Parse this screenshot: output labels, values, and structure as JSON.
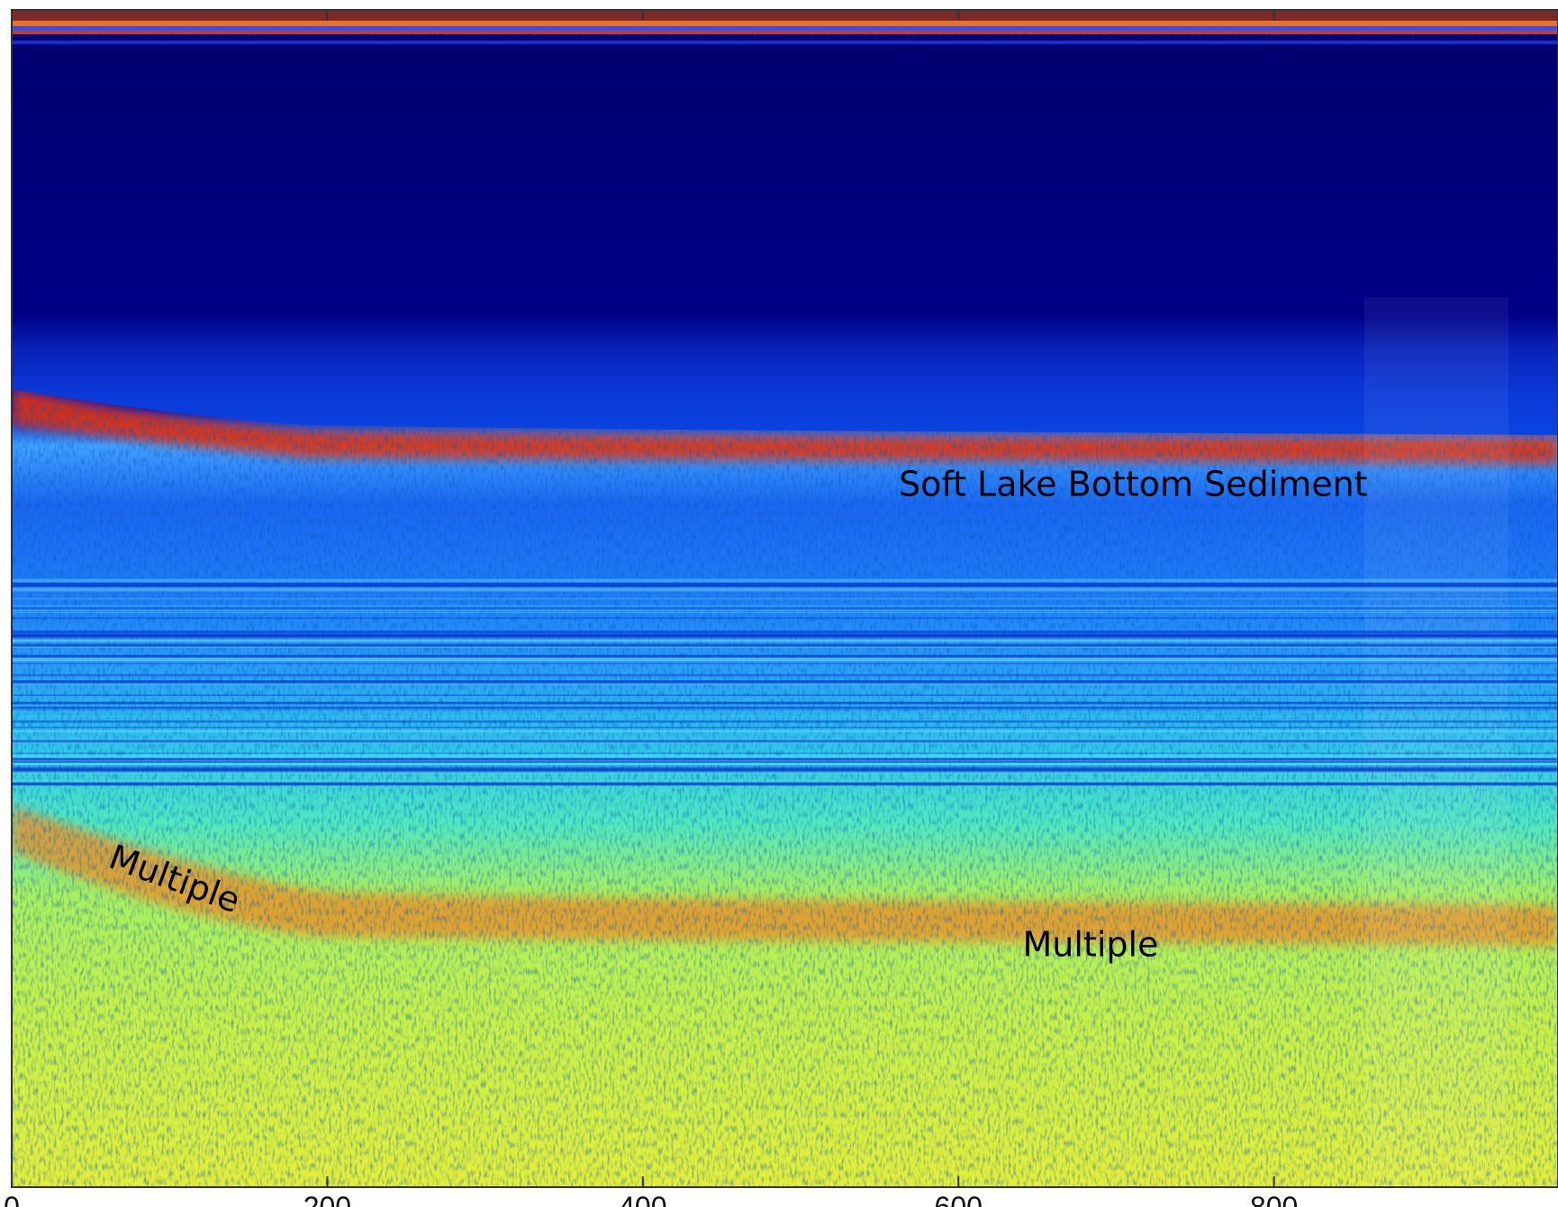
{
  "chart_data": {
    "type": "heatmap",
    "xlim": [
      0,
      980
    ],
    "xticks": [
      0,
      200,
      400,
      600,
      800
    ],
    "annotations": [
      "Soft Lake Bottom Sediment",
      "Multiple",
      "Multiple"
    ]
  }
}
